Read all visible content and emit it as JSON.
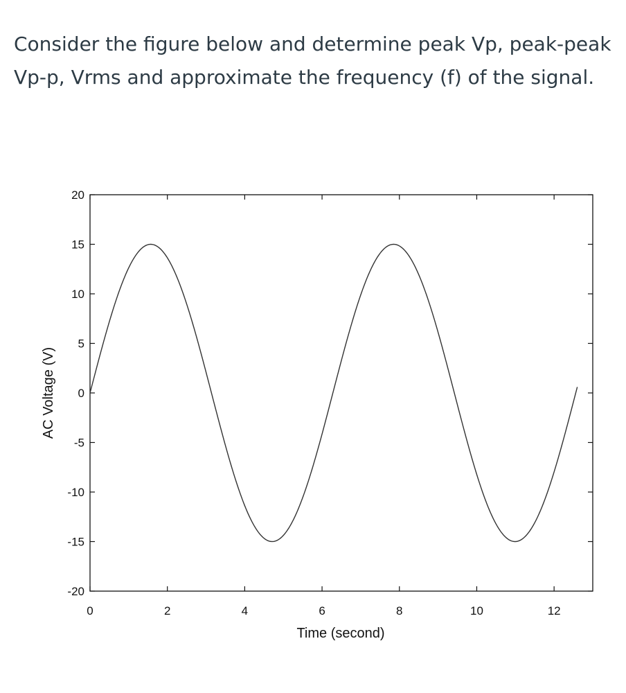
{
  "question": {
    "line1": "Consider the figure below and determine peak Vp, peak-peak",
    "line2": "Vp-p, Vrms and approximate the frequency (f) of the signal."
  },
  "chart_data": {
    "type": "line",
    "title": "",
    "xlabel": "Time (second)",
    "ylabel": "AC Voltage (V)",
    "xlim": [
      0,
      13
    ],
    "ylim": [
      -20,
      20
    ],
    "xticks": [
      0,
      2,
      4,
      6,
      8,
      10,
      12
    ],
    "yticks": [
      20,
      15,
      10,
      5,
      0,
      -5,
      -10,
      -15,
      -20
    ],
    "grid": false,
    "legend": "none",
    "series": [
      {
        "amplitude": 15,
        "period_seconds": 6.28,
        "x_start": 0,
        "x_end": 12.6,
        "color": "#333333"
      }
    ]
  }
}
